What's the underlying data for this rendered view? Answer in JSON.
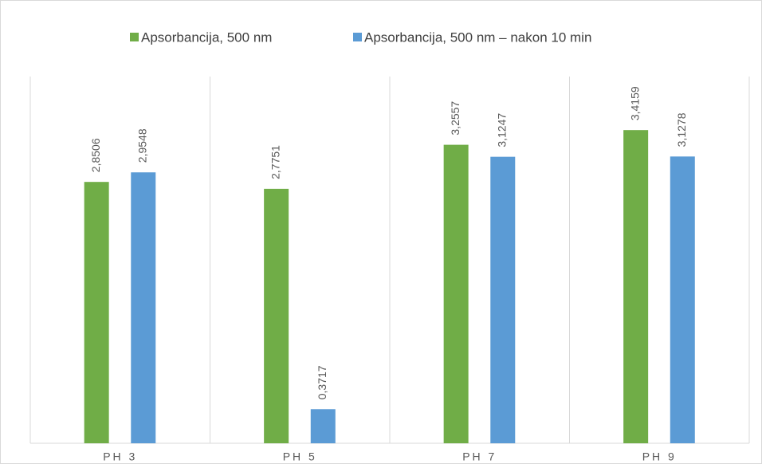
{
  "chart_data": {
    "type": "bar",
    "categories": [
      "PH 3",
      "PH 5",
      "PH 7",
      "PH 9"
    ],
    "series": [
      {
        "name": "Apsorbancija, 500 nm",
        "color": "#70ad47",
        "values": [
          2.8506,
          2.7751,
          3.2557,
          3.4159
        ],
        "value_labels": [
          "2,8506",
          "2,7751",
          "3,2557",
          "3,4159"
        ]
      },
      {
        "name": "Apsorbancija, 500 nm – nakon 10 min",
        "color": "#5b9bd5",
        "values": [
          2.9548,
          0.3717,
          3.1247,
          3.1278
        ],
        "value_labels": [
          "2,9548",
          "0,3717",
          "3,1247",
          "3,1278"
        ]
      }
    ],
    "ylim": [
      0,
      4
    ],
    "legend": "top"
  }
}
